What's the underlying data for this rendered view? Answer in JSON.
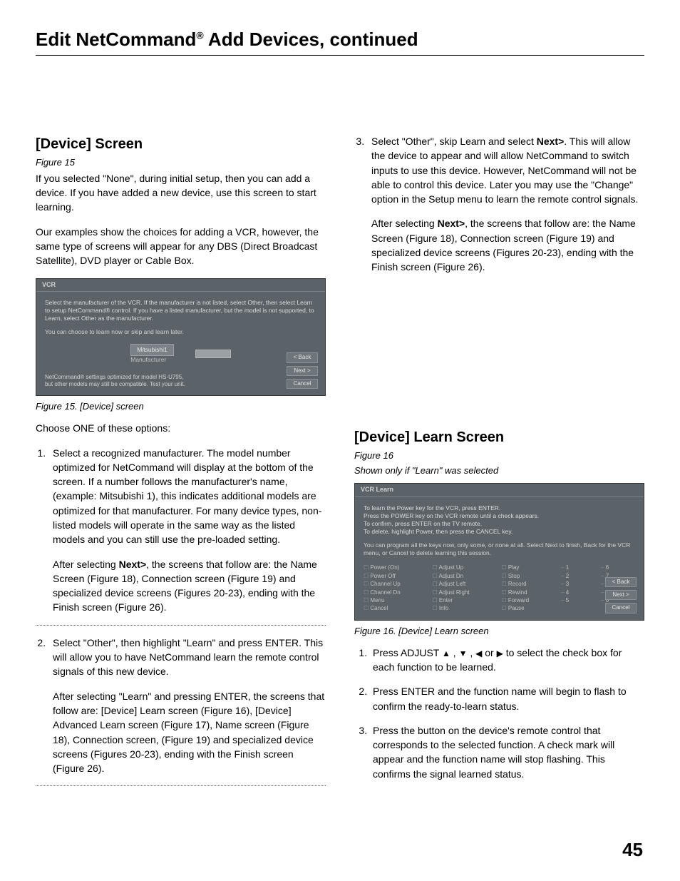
{
  "pageTitle": {
    "pre": "Edit NetCommand",
    "reg": "®",
    "post": " Add Devices, continued"
  },
  "pageNumber": "45",
  "left": {
    "heading": "[Device] Screen",
    "figRef": "Figure 15",
    "p1": "If you selected \"None\", during initial setup, then you can add a device.  If you have added a new device, use this screen to start learning.",
    "p2": "Our examples show the choices for adding a VCR, however, the same type of screens will appear for any DBS (Direct Broadcast Satellite), DVD player or Cable Box.",
    "figCaption": "Figure 15.  [Device] screen",
    "choose": "Choose ONE of these options:",
    "opt1a": "Select a recognized manufacturer.  The model number optimized for NetCommand will display at the bottom of the screen. If a number follows the manufacturer's name, (example: Mitsubishi 1), this indicates additional models are optimized for that manufacturer.  For many device types, non-listed models will operate in the same way as the listed models and you can still use the pre-loaded setting.",
    "opt1b_pre": "After selecting ",
    "opt1b_bold": "Next>",
    "opt1b_post": ", the screens that follow are: the Name Screen (Figure 18), Connection screen (Figure 19) and specialized device screens (Figures 20-23), ending with the Finish screen (Figure 26).",
    "opt2a": "Select \"Other\", then highlight \"Learn\" and press ENTER.  This will allow you to have NetCommand learn the remote control signals of this new device.",
    "opt2b": "After selecting \"Learn\" and pressing ENTER, the screens that follow are:  [Device] Learn screen (Figure 16), [Device] Advanced Learn screen (Figure 17), Name screen (Figure 18), Connection screen, (Figure 19) and specialized device screens (Figures 20-23), ending with the Finish screen (Figure 26)."
  },
  "right": {
    "opt3a_pre": "Select \"Other\", skip Learn and select ",
    "opt3a_bold": "Next>",
    "opt3a_post": ".  This will allow the device to appear and will allow NetCommand to switch inputs to use this device. However, NetCommand will not be able to control this device.  Later you may use the \"Change\" option in the Setup menu to learn the remote control signals.",
    "opt3b_pre": "After selecting ",
    "opt3b_bold": "Next>",
    "opt3b_post": ", the screens that follow are: the Name Screen (Figure 18), Connection screen (Figure 19) and specialized device screens (Figures 20-23), ending with the Finish screen (Figure 26).",
    "learnHeading": "[Device] Learn Screen",
    "learnFigRef": "Figure 16",
    "learnShown": "Shown only if \"Learn\" was selected",
    "learnCaption": "Figure 16.  [Device] Learn screen",
    "step1_pre": "Press ADJUST ",
    "step1_post": " to select the check box for each function to be learned.",
    "step2": "Press ENTER and the function name will begin to flash to confirm the ready-to-learn status.",
    "step3": "Press the button on the device's remote control that corresponds to the selected function.  A check mark will appear and the function name will stop flashing.  This confirms the signal learned status."
  },
  "ss1": {
    "title": "VCR",
    "line1": "Select the manufacturer of the VCR.   If the manufacturer is not listed, select Other, then select Learn to setup NetCommand® control. If you have a listed manufacturer, but the model is not supported, to Learn, select Other as the manufacturer.",
    "line2": "You can choose to learn now or skip and learn later.",
    "field": "Mitsubishi1",
    "fieldLabel": "Manufacturer",
    "note1": "NetCommand® settings optimized for model HS-U795,",
    "note2": "but other models may still be compatible. Test your unit.",
    "btnBack": "< Back",
    "btnNext": "Next >",
    "btnCancel": "Cancel"
  },
  "ss2": {
    "title": "VCR Learn",
    "l1": "To learn the Power key for the VCR, press ENTER.",
    "l2": "Press the POWER key on the VCR remote until a check appears.",
    "l3": "To confirm, press ENTER on the TV remote.",
    "l4": "To delete, highlight Power, then press the CANCEL key.",
    "l5": "You can program all the keys now, only some, or none at all. Select Next to finish, Back for the VCR menu, or Cancel to delete learning this session.",
    "grid": {
      "c1": [
        "Power (On)",
        "Power Off",
        "Channel Up",
        "Channel Dn",
        "Menu",
        "Cancel"
      ],
      "c2": [
        "Adjust Up",
        "Adjust Dn",
        "Adjust Left",
        "Adjust Right",
        "Enter",
        "Info"
      ],
      "c3": [
        "Play",
        "Stop",
        "Record",
        "Rewind",
        "Forward",
        "Pause"
      ],
      "c4": [
        "1",
        "2",
        "3",
        "4",
        "5",
        ""
      ],
      "c5": [
        "6",
        "7",
        "8",
        "9",
        "0",
        ""
      ]
    },
    "btnBack": "< Back",
    "btnNext": "Next >",
    "btnCancel": "Cancel"
  }
}
